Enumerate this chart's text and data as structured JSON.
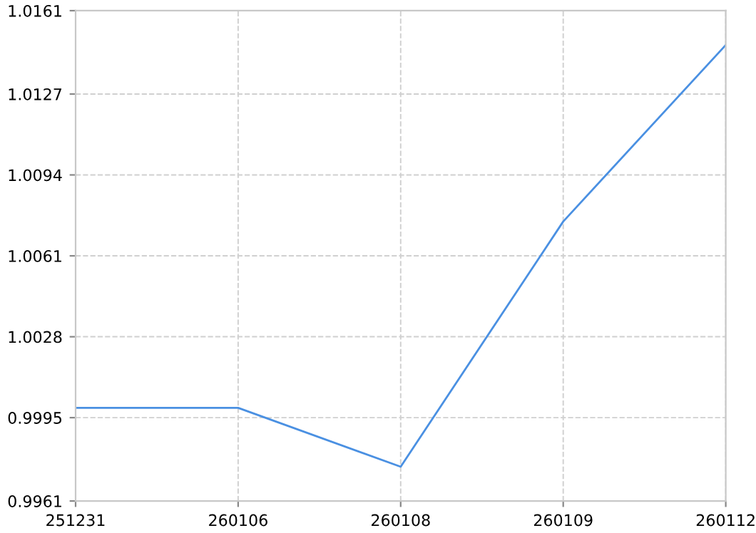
{
  "chart_data": {
    "type": "line",
    "categories": [
      "251231",
      "260106",
      "260108",
      "260109",
      "260112"
    ],
    "series": [
      {
        "color": "#4a90e2",
        "values": [
          0.9999,
          0.9999,
          0.9975,
          1.0075,
          1.0147
        ]
      }
    ],
    "ylim": [
      0.9961,
      1.0161
    ],
    "yticks": [
      0.9961,
      0.9995,
      1.0028,
      1.0061,
      1.0094,
      1.0127,
      1.0161
    ],
    "grid": true,
    "marker": "none",
    "line_style": "solid"
  }
}
